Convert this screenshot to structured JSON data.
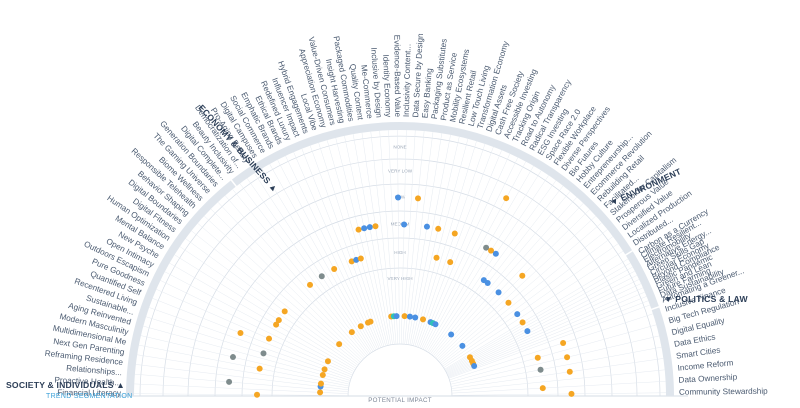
{
  "chart_data": {
    "type": "scatter",
    "title": "",
    "axis_label": "POTENTIAL IMPACT",
    "rings": [
      "NONE",
      "VERY LOW",
      "LOW",
      "MEDIUM",
      "HIGH",
      "VERY HIGH"
    ],
    "colors": {
      "orange": "#f5a623",
      "blue": "#4a90e2",
      "gray": "#7f8c8d",
      "teal": "#2ec4b6"
    },
    "sections": [
      {
        "name": "ECONOMY & BUSINESS",
        "trends": [
          "Beauty Inclusivity",
          "Democratization of...",
          "Pro-Aging Beauty",
          "Digital Campuses",
          "Social Commerce",
          "Emphatic Brands",
          "Ethical Brands",
          "Redefined Luxury",
          "Influencer Impact",
          "Hybrid Engagements",
          "Local Vibe",
          "Appreciation Economy",
          "Value-Driven Consumers",
          "Insight Harvesting",
          "Packaged Commodities",
          "Quality Content",
          "Me-Commerce",
          "Inclusive by Design",
          "Identity Economy",
          "Evidence-Based Value",
          "Inclusivity Content...",
          "Data Secure by Design",
          "Easy Banking",
          "Packaging Substitutes",
          "Product as Service",
          "Mobility Ecosystems",
          "Resilient Retail",
          "Low Touch Living",
          "Transformation Economy",
          "Digital Assets",
          "Cash Free Society",
          "Accessible Investing",
          "Tracking Origin",
          "Road to Autonomy",
          "Radical Transparency",
          "ESG Investing",
          "Space Race 2.0",
          "Flexible Workplace",
          "Diverse Perspectives",
          "Bio Futures",
          "Hobby Culture",
          "Entrepreneurship...",
          "Ecommerce Revolution",
          "Rebuilding Retail",
          "Facilitated...",
          "Stakeholder Capitalism",
          "Prosperous Value",
          "Diversified Value",
          "Localized Production",
          "Distributed..."
        ],
        "points": [
          {
            "trend": "Beauty Inclusivity",
            "impact": "VERY HIGH",
            "color": "orange"
          },
          {
            "trend": "Pro-Aging Beauty",
            "impact": "HIGH",
            "color": "gray"
          },
          {
            "trend": "Social Commerce",
            "impact": "VERY HIGH",
            "color": "orange"
          },
          {
            "trend": "Emphatic Brands",
            "impact": "HIGH",
            "color": "orange"
          },
          {
            "trend": "Redefined Luxury",
            "impact": "VERY HIGH",
            "color": "orange"
          },
          {
            "trend": "Influencer Impact",
            "impact": "VERY HIGH",
            "color": "orange"
          },
          {
            "trend": "Hybrid Engagements",
            "impact": "HIGH",
            "color": "orange"
          },
          {
            "trend": "Local Vibe",
            "impact": "HIGH",
            "color": "blue"
          },
          {
            "trend": "Appreciation Economy",
            "impact": "HIGH",
            "color": "orange"
          },
          {
            "trend": "Value-Driven Consumers",
            "impact": "MEDIUM",
            "color": "orange"
          },
          {
            "trend": "Insight Harvesting",
            "impact": "MEDIUM",
            "color": "blue"
          },
          {
            "trend": "Packaged Commodities",
            "impact": "MEDIUM",
            "color": "blue"
          },
          {
            "trend": "Quality Content",
            "impact": "MEDIUM",
            "color": "orange"
          },
          {
            "trend": "Me-Commerce",
            "impact": "VERY HIGH",
            "color": "orange"
          },
          {
            "trend": "Inclusive by Design",
            "impact": "VERY HIGH",
            "color": "teal"
          },
          {
            "trend": "Identity Economy",
            "impact": "VERY HIGH",
            "color": "blue"
          },
          {
            "trend": "Evidence-Based Value",
            "impact": "LOW",
            "color": "blue"
          },
          {
            "trend": "Inclusivity Content...",
            "impact": "MEDIUM",
            "color": "blue"
          },
          {
            "trend": "Data Secure by Design",
            "impact": "VERY HIGH",
            "color": "orange"
          },
          {
            "trend": "Easy Banking",
            "impact": "LOW",
            "color": "orange"
          },
          {
            "trend": "Packaging Substitutes",
            "impact": "VERY HIGH",
            "color": "blue"
          },
          {
            "trend": "Product as Service",
            "impact": "MEDIUM",
            "color": "blue"
          },
          {
            "trend": "Mobility Ecosystems",
            "impact": "VERY HIGH",
            "color": "blue"
          },
          {
            "trend": "Resilient Retail",
            "impact": "MEDIUM",
            "color": "orange"
          },
          {
            "trend": "Low Touch Living",
            "impact": "HIGH",
            "color": "orange"
          },
          {
            "trend": "Transformation Economy",
            "impact": "VERY HIGH",
            "color": "orange"
          },
          {
            "trend": "Digital Assets",
            "impact": "MEDIUM",
            "color": "orange"
          },
          {
            "trend": "Cash Free Society",
            "impact": "HIGH",
            "color": "orange"
          },
          {
            "trend": "Accessible Investing",
            "impact": "VERY HIGH",
            "color": "blue"
          },
          {
            "trend": "Tracking Origin",
            "impact": "VERY HIGH",
            "color": "teal"
          },
          {
            "trend": "Road to Autonomy",
            "impact": "VERY HIGH",
            "color": "blue"
          },
          {
            "trend": "Radical Transparency",
            "impact": "VERY LOW",
            "color": "orange"
          },
          {
            "trend": "ESG Investing",
            "impact": "MEDIUM",
            "color": "gray"
          },
          {
            "trend": "Space Race 2.0",
            "impact": "MEDIUM",
            "color": "orange"
          },
          {
            "trend": "Flexible Workplace",
            "impact": "MEDIUM",
            "color": "blue"
          },
          {
            "trend": "Diverse Perspectives",
            "impact": "HIGH",
            "color": "blue"
          },
          {
            "trend": "Bio Futures",
            "impact": "HIGH",
            "color": "blue"
          },
          {
            "trend": "Hobby Culture",
            "impact": "VERY HIGH",
            "color": "blue"
          },
          {
            "trend": "Ecommerce Revolution",
            "impact": "HIGH",
            "color": "blue"
          },
          {
            "trend": "Rebuilding Retail",
            "impact": "MEDIUM",
            "color": "orange"
          },
          {
            "trend": "Stakeholder Capitalism",
            "impact": "HIGH",
            "color": "orange"
          },
          {
            "trend": "Prosperous Value",
            "impact": "VERY HIGH",
            "color": "blue"
          },
          {
            "trend": "Localized Production",
            "impact": "HIGH",
            "color": "blue"
          }
        ]
      },
      {
        "name": "ENVIRONMENT",
        "trends": [
          "Carbon as a Currency",
          "Climate Resilient...",
          "Electromobility",
          "Alternative Energy...",
          "Green Skills Gap",
          "Circular Economy",
          "Beyond Compliance",
          "Plastic Pandemic",
          "Green and Lean",
          "Future Farming",
          "Data Sustainability",
          "Automating a Greener..."
        ],
        "points": [
          {
            "trend": "Carbon as a Currency",
            "impact": "HIGH",
            "color": "orange"
          },
          {
            "trend": "Electromobility",
            "impact": "VERY HIGH",
            "color": "orange"
          },
          {
            "trend": "Green Skills Gap",
            "impact": "HIGH",
            "color": "blue"
          },
          {
            "trend": "Circular Economy",
            "impact": "VERY HIGH",
            "color": "orange"
          },
          {
            "trend": "Plastic Pandemic",
            "impact": "VERY HIGH",
            "color": "orange"
          },
          {
            "trend": "Future Farming",
            "impact": "VERY HIGH",
            "color": "blue"
          }
        ]
      },
      {
        "name": "POLITICS & LAW",
        "trends": [
          "Inclusive Finance",
          "Big Tech Regulation",
          "Digital Equality",
          "Data Ethics",
          "Smart Cities",
          "Income Reform",
          "Data Ownership",
          "Community Stewardship"
        ],
        "points": [
          {
            "trend": "Inclusive Finance",
            "impact": "MEDIUM",
            "color": "orange"
          },
          {
            "trend": "Big Tech Regulation",
            "impact": "HIGH",
            "color": "orange"
          },
          {
            "trend": "Digital Equality",
            "impact": "MEDIUM",
            "color": "orange"
          },
          {
            "trend": "Data Ethics",
            "impact": "HIGH",
            "color": "gray"
          },
          {
            "trend": "Smart Cities",
            "impact": "MEDIUM",
            "color": "orange"
          },
          {
            "trend": "Data Ownership",
            "impact": "HIGH",
            "color": "orange"
          },
          {
            "trend": "Community Stewardship",
            "impact": "MEDIUM",
            "color": "orange"
          }
        ]
      },
      {
        "name": "SOCIETY & INDIVIDUALS",
        "subtitle": "TREND SEGMENTATION",
        "trends": [
          "Financial Literacy",
          "Proactive Health...",
          "Relationships...",
          "Reframing Residence",
          "Next Gen Parenting",
          "Multidimensional Me",
          "Modern Masculinity",
          "Aging Reinvented",
          "Sustainable...",
          "Recentered Living",
          "Quantified Self",
          "Pure Goodness",
          "Outdoors Escapism",
          "Open Intimacy",
          "New Psyche",
          "Mental Balance",
          "Human Optimization",
          "Digital Fitness",
          "Digital Boundaries",
          "Behavior Shaping",
          "Responsible Telehealth",
          "Biome Wellness",
          "The Gaming Universe",
          "Generation Boundaries",
          "Digital Complete..."
        ],
        "points": [
          {
            "trend": "Financial Literacy",
            "impact": "HIGH",
            "color": "orange"
          },
          {
            "trend": "Proactive Health...",
            "impact": "VERY HIGH",
            "color": "orange"
          },
          {
            "trend": "Relationships...",
            "impact": "MEDIUM",
            "color": "gray"
          },
          {
            "trend": "Reframing Residence",
            "impact": "VERY HIGH",
            "color": "blue"
          },
          {
            "trend": "Next Gen Parenting",
            "impact": "VERY HIGH",
            "color": "orange"
          },
          {
            "trend": "Multidimensional Me",
            "impact": "HIGH",
            "color": "orange"
          },
          {
            "trend": "Modern Masculinity",
            "impact": "MEDIUM",
            "color": "gray"
          },
          {
            "trend": "Aging Reinvented",
            "impact": "VERY HIGH",
            "color": "orange"
          },
          {
            "trend": "Sustainable...",
            "impact": "HIGH",
            "color": "gray"
          },
          {
            "trend": "Recentered Living",
            "impact": "VERY HIGH",
            "color": "orange"
          },
          {
            "trend": "Quantified Self",
            "impact": "MEDIUM",
            "color": "orange"
          },
          {
            "trend": "Pure Goodness",
            "impact": "HIGH",
            "color": "orange"
          },
          {
            "trend": "Outdoors Escapism",
            "impact": "VERY HIGH",
            "color": "orange"
          },
          {
            "trend": "New Psyche",
            "impact": "HIGH",
            "color": "orange"
          },
          {
            "trend": "Mental Balance",
            "impact": "HIGH",
            "color": "orange"
          },
          {
            "trend": "Digital Fitness",
            "impact": "HIGH",
            "color": "orange"
          },
          {
            "trend": "Behavior Shaping",
            "impact": "VERY HIGH",
            "color": "orange"
          },
          {
            "trend": "Digital Complete...",
            "impact": "HIGH",
            "color": "orange"
          }
        ]
      }
    ]
  }
}
